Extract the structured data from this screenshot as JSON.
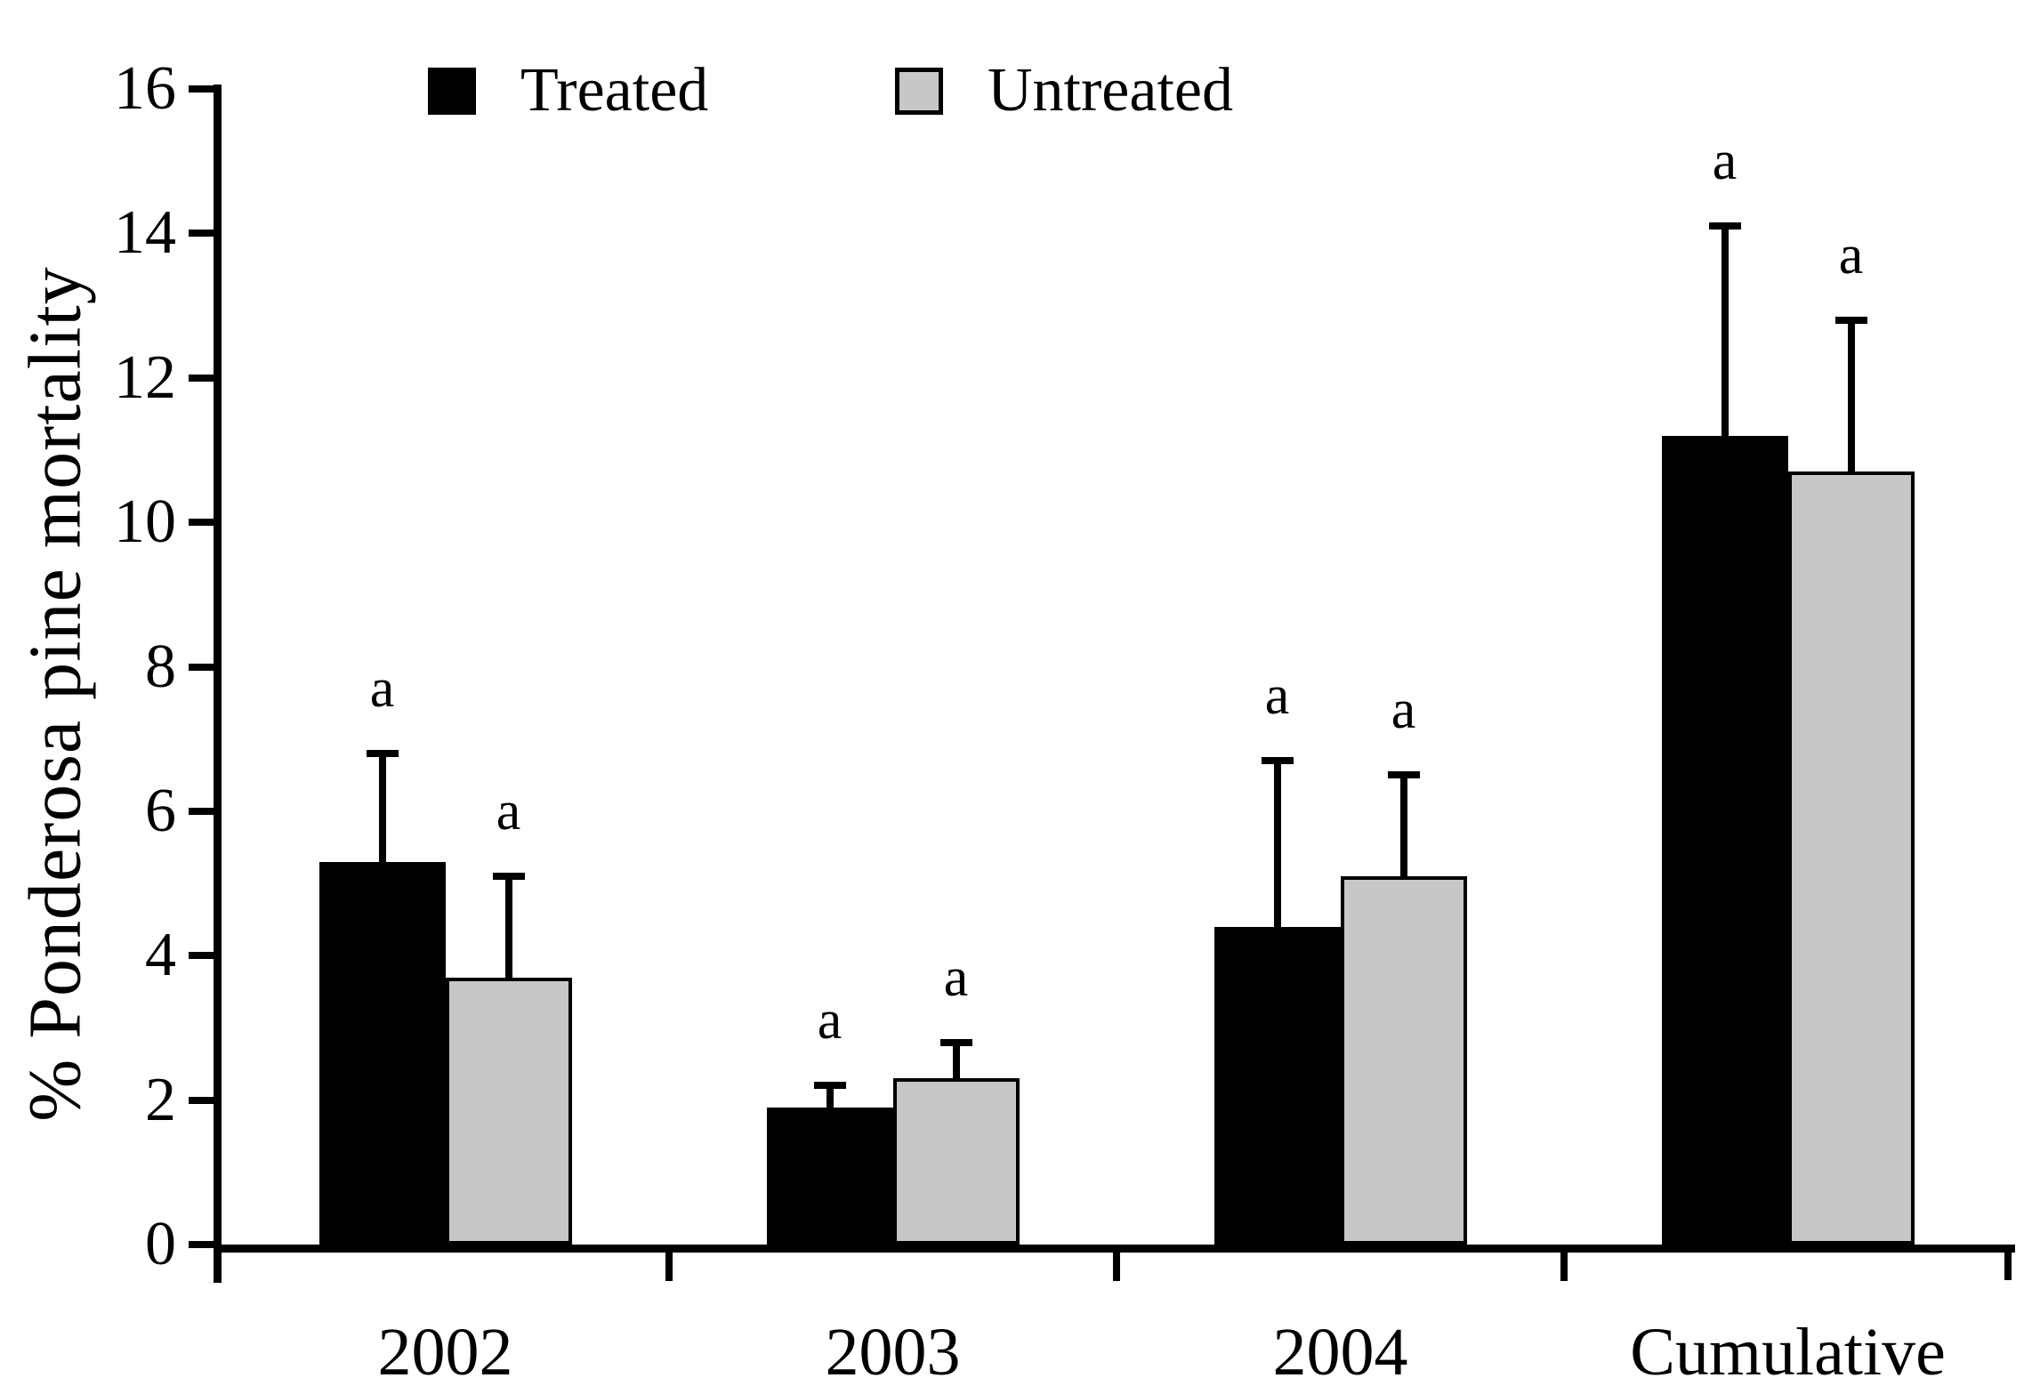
{
  "chart_data": {
    "type": "bar",
    "title": "",
    "xlabel": "",
    "ylabel": "% Ponderosa pine mortality",
    "ylim": [
      0,
      16
    ],
    "yticks": [
      0,
      2,
      4,
      6,
      8,
      10,
      12,
      14,
      16
    ],
    "grid": false,
    "legend_position": "top-inside",
    "categories": [
      "2002",
      "2003",
      "2004",
      "Cumulative"
    ],
    "series": [
      {
        "name": "Treated",
        "color": "#000000",
        "values": [
          5.3,
          1.9,
          4.4,
          11.2
        ],
        "error_tops": [
          6.8,
          2.2,
          6.7,
          14.1
        ],
        "sig_labels": [
          "a",
          "a",
          "a",
          "a"
        ]
      },
      {
        "name": "Untreated",
        "color": "#c7c7c7",
        "outline": "#000000",
        "values": [
          3.7,
          2.3,
          5.1,
          10.7
        ],
        "error_tops": [
          5.1,
          2.8,
          6.5,
          12.8
        ],
        "sig_labels": [
          "a",
          "a",
          "a",
          "a"
        ]
      }
    ]
  }
}
